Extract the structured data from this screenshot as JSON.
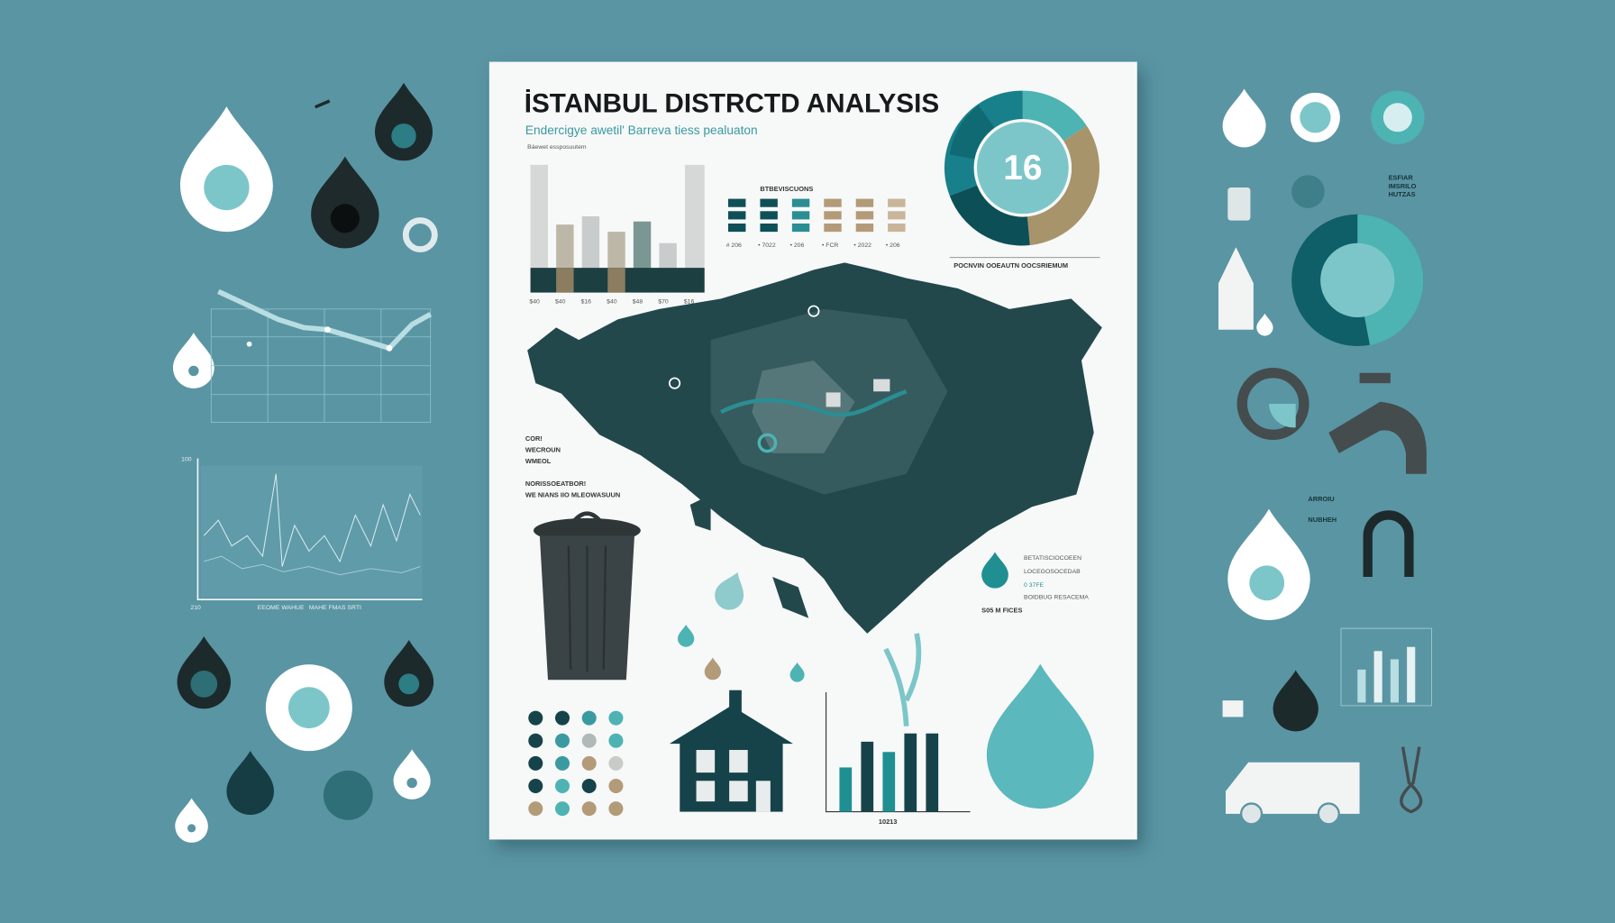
{
  "header": {
    "title": "İSTANBUL DISTRCTD ANALYSIS",
    "subtitle": "Endercigye awetil' Barreva tiess pealuaton",
    "note": "Bäewet essposuutem"
  },
  "bar_panel": {
    "label": "BTBEVISCUONS",
    "axis_labels": [
      "$40",
      "$40",
      "$16",
      "$40",
      "$48",
      "$70",
      "$16"
    ],
    "legend_labels": [
      "# 206",
      "• 7022",
      "• 206",
      "• FCR",
      "• 2022",
      "• 206"
    ]
  },
  "pie_panel": {
    "center": "16",
    "caption": "POCNVIN OOEAUTN OOCSRIEMUM"
  },
  "map_notes": {
    "first": [
      "COR!",
      "WECROUN",
      "WMEOL"
    ],
    "second": [
      "NORISSOEATBOR!",
      "WE NIANS IIO MLEOWASUUN"
    ]
  },
  "map_legend": {
    "items": [
      "BETATISCIOCOEEN",
      "LOCEGOSOCEDAB",
      "0 37FE",
      "BOIDBUG RESACEMA"
    ],
    "footer": "S05 M FICES"
  },
  "bottom_chart": {
    "label": "10213"
  },
  "left_chart": {
    "y_label": "100",
    "x_labels": [
      "210",
      "EEOME WAHUE",
      "MAHE FMAS SRTI"
    ]
  },
  "right_panel": {
    "note": [
      "ESFIAR",
      "IMSRILO",
      "HUTZAS"
    ],
    "labels": [
      "ARROIU",
      "NUBHEH"
    ]
  }
}
